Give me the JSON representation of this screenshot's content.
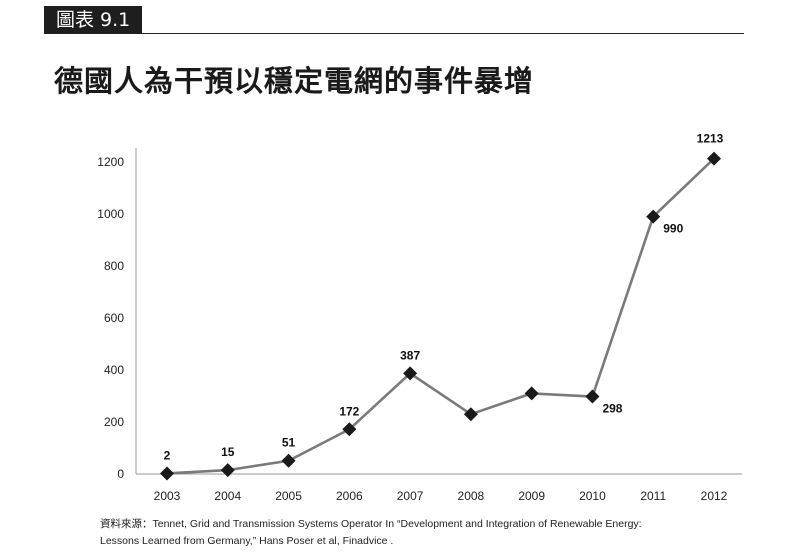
{
  "figure_label": "圖表 9.1",
  "title": "德國人為干預以穩定電網的事件暴增",
  "source": {
    "prefix": "資料來源：",
    "line1": "Tennet, Grid and Transmission Systems Operator In “Development and Integration of Renewable Energy:",
    "line2": "Lessons Learned from Germany,” Hans Poser et al, Finadvice ."
  },
  "chart_data": {
    "type": "line",
    "categories": [
      "2003",
      "2004",
      "2005",
      "2006",
      "2007",
      "2008",
      "2009",
      "2010",
      "2011",
      "2012"
    ],
    "values": [
      2,
      15,
      51,
      172,
      387,
      230,
      310,
      298,
      990,
      1213
    ],
    "data_labels": [
      "2",
      "15",
      "51",
      "172",
      "387",
      "",
      "",
      "298",
      "990",
      "1213"
    ],
    "ylim": [
      0,
      1200
    ],
    "yticks": [
      0,
      200,
      400,
      600,
      800,
      1000,
      1200
    ],
    "grid": false,
    "colors": {
      "line": "#7a7a7a",
      "marker": "#1a1a1a",
      "axis": "#9a9a9a"
    }
  }
}
